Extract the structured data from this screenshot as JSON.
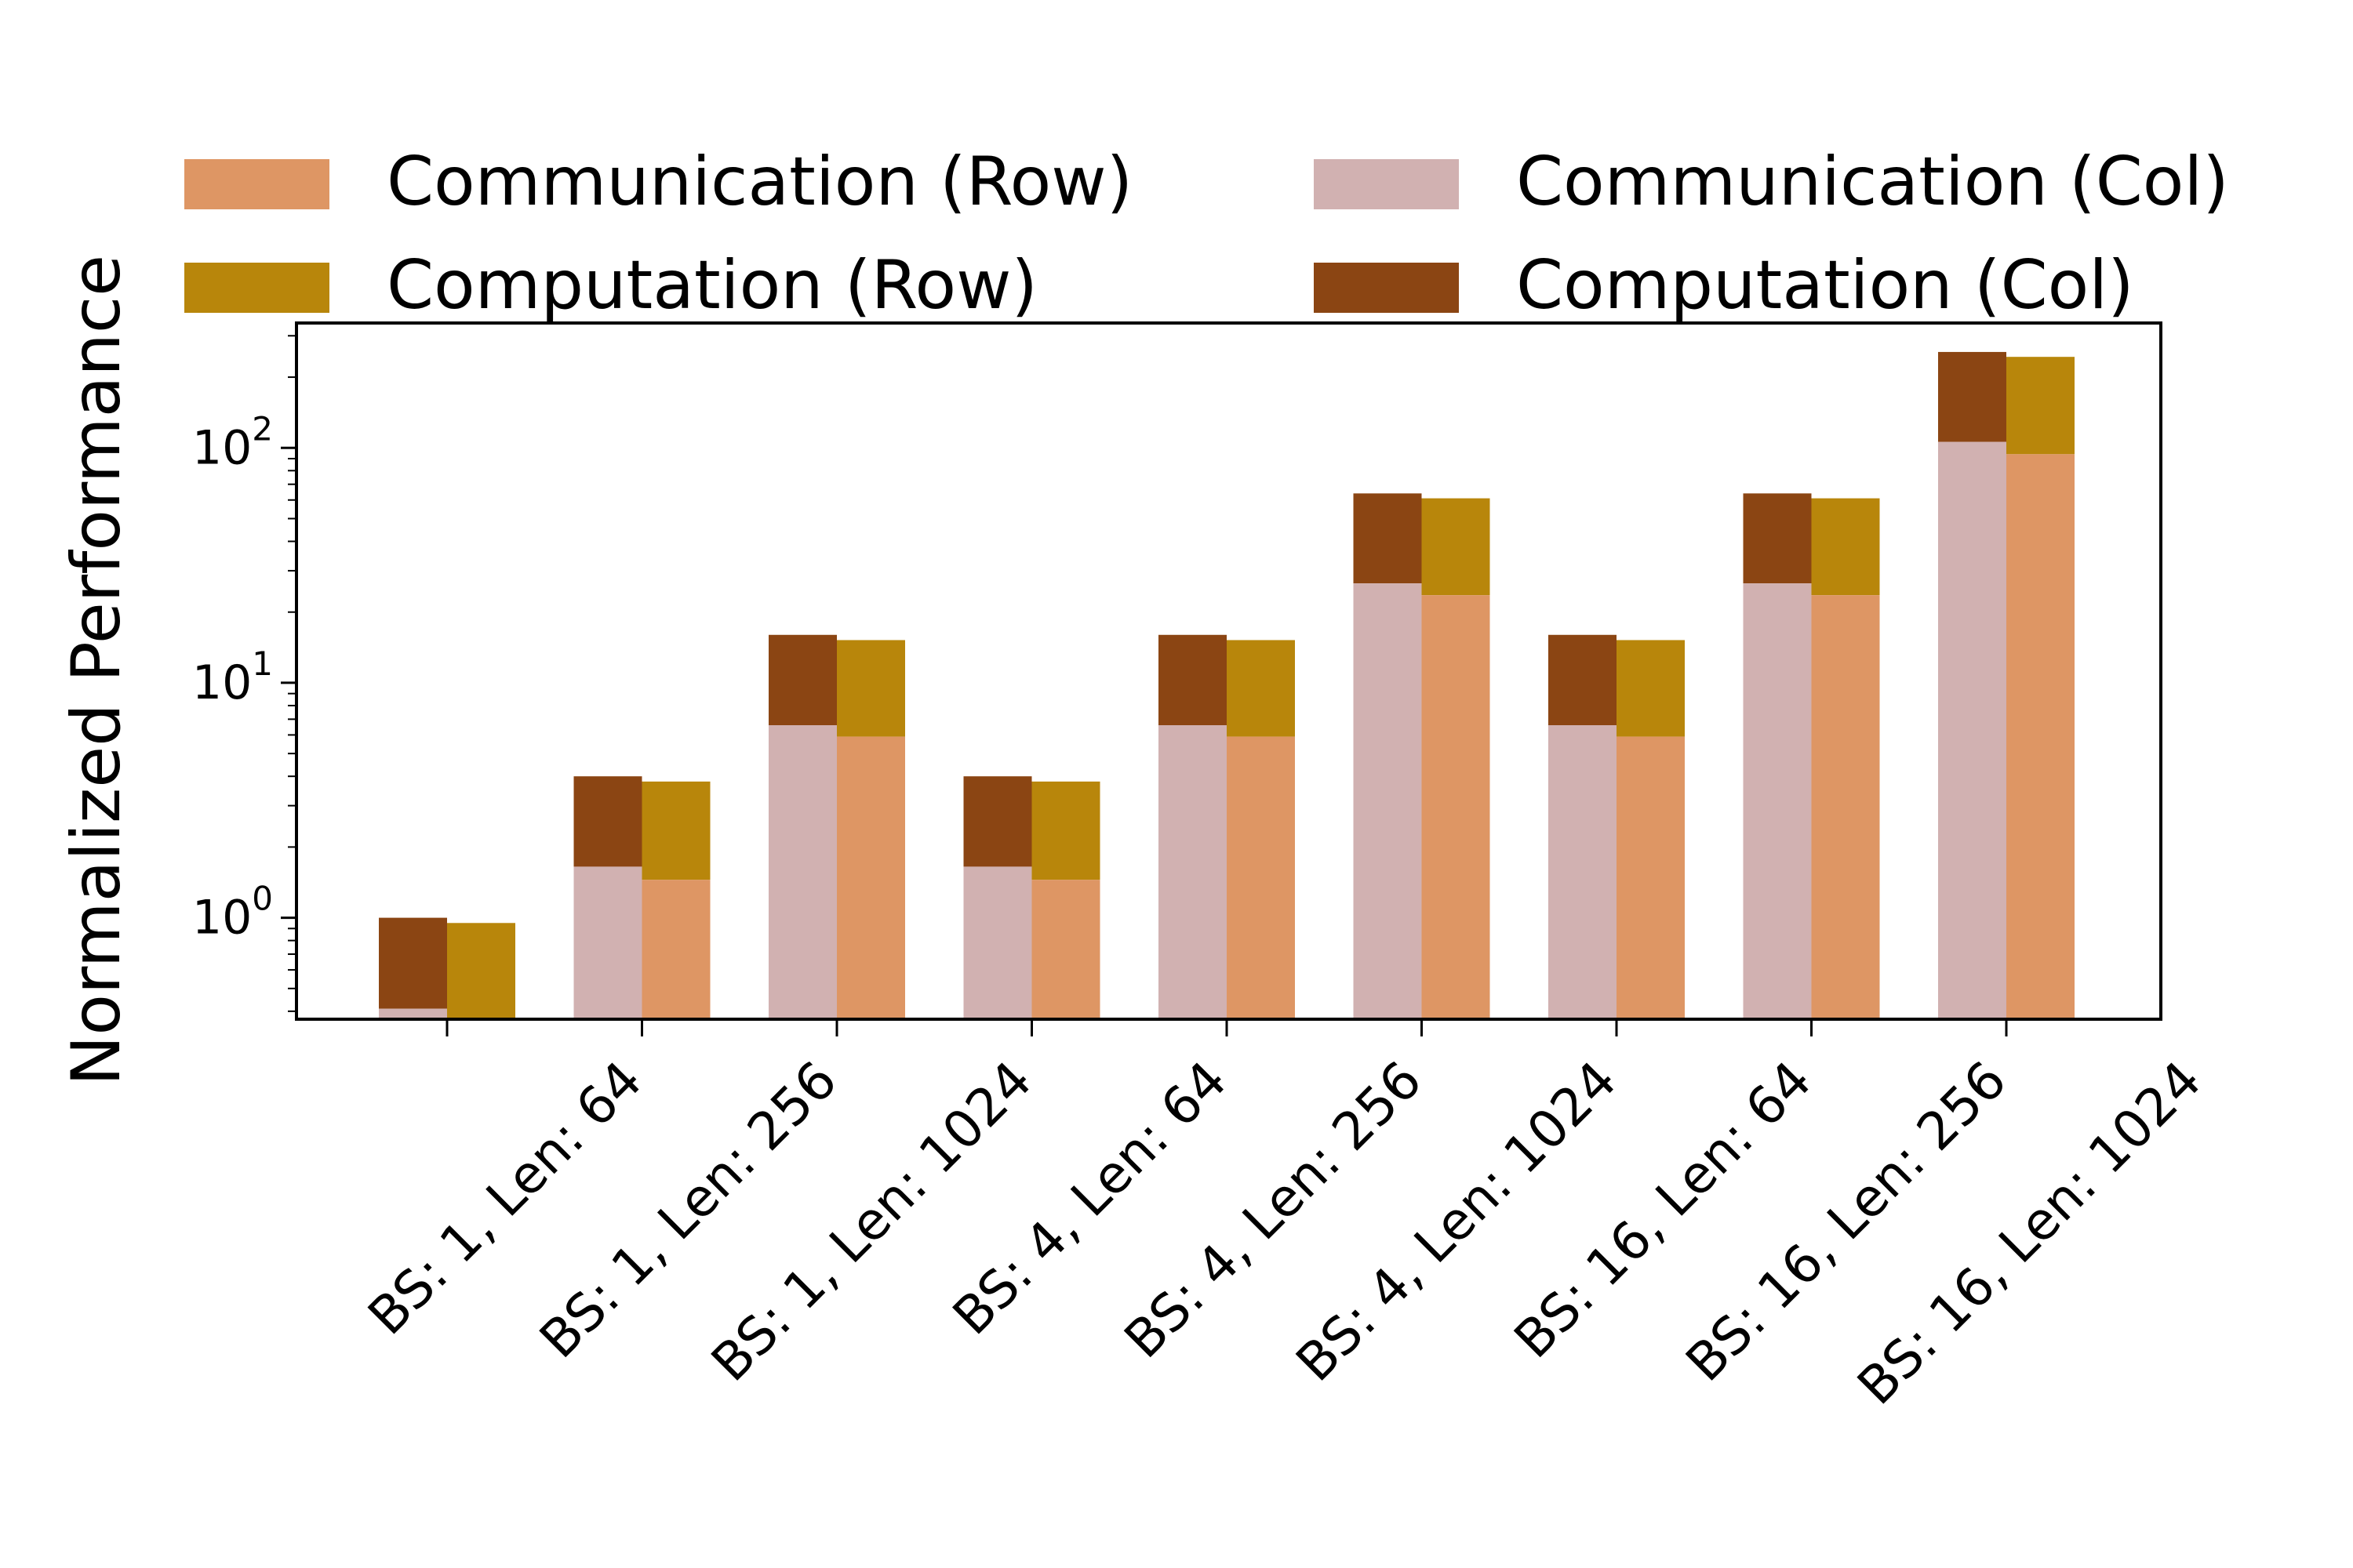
{
  "chart_data": {
    "type": "bar",
    "stacked": true,
    "ylabel": "Normalized Performance",
    "xlabel": "",
    "yscale": "log",
    "ylim": [
      0.37,
      340
    ],
    "yticks": [
      {
        "value": 1,
        "base": "10",
        "exp": "0"
      },
      {
        "value": 10,
        "base": "10",
        "exp": "1"
      },
      {
        "value": 100,
        "base": "10",
        "exp": "2"
      }
    ],
    "categories": [
      "BS: 1, Len: 64",
      "BS: 1, Len: 256",
      "BS: 1, Len: 1024",
      "BS: 4, Len: 64",
      "BS: 4, Len: 256",
      "BS: 4, Len: 1024",
      "BS: 16, Len: 64",
      "BS: 16, Len: 256",
      "BS: 16, Len: 1024"
    ],
    "legend": {
      "placement": "top",
      "entries": [
        {
          "key": "comm_row",
          "label": "Communication (Row)",
          "color": "#DE9664"
        },
        {
          "key": "comm_col",
          "label": "Communication (Col)",
          "color": "#D1B1B1"
        },
        {
          "key": "comp_row",
          "label": "Computation (Row)",
          "color": "#B8860B"
        },
        {
          "key": "comp_col",
          "label": "Computation (Col)",
          "color": "#8B4513"
        }
      ]
    },
    "series": [
      {
        "name": "Communication (Col)",
        "group": "Col",
        "part": "Communication",
        "color": "#D1B1B1",
        "values": [
          0.41,
          1.65,
          6.6,
          1.65,
          6.6,
          26.5,
          6.6,
          26.5,
          106
        ]
      },
      {
        "name": "Computation (Col)",
        "group": "Col",
        "part": "Computation",
        "color": "#8B4513",
        "values": [
          1.0,
          4.0,
          16.0,
          4.0,
          16.0,
          64.0,
          16.0,
          64.0,
          256
        ]
      },
      {
        "name": "Communication (Row)",
        "group": "Row",
        "part": "Communication",
        "color": "#DE9664",
        "values": [
          0.37,
          1.45,
          5.9,
          1.45,
          5.9,
          23.6,
          5.9,
          23.6,
          94
        ]
      },
      {
        "name": "Computation (Row)",
        "group": "Row",
        "part": "Computation",
        "color": "#B8860B",
        "values": [
          0.95,
          3.8,
          15.2,
          3.8,
          15.2,
          61.0,
          15.2,
          61.0,
          244
        ]
      }
    ]
  }
}
